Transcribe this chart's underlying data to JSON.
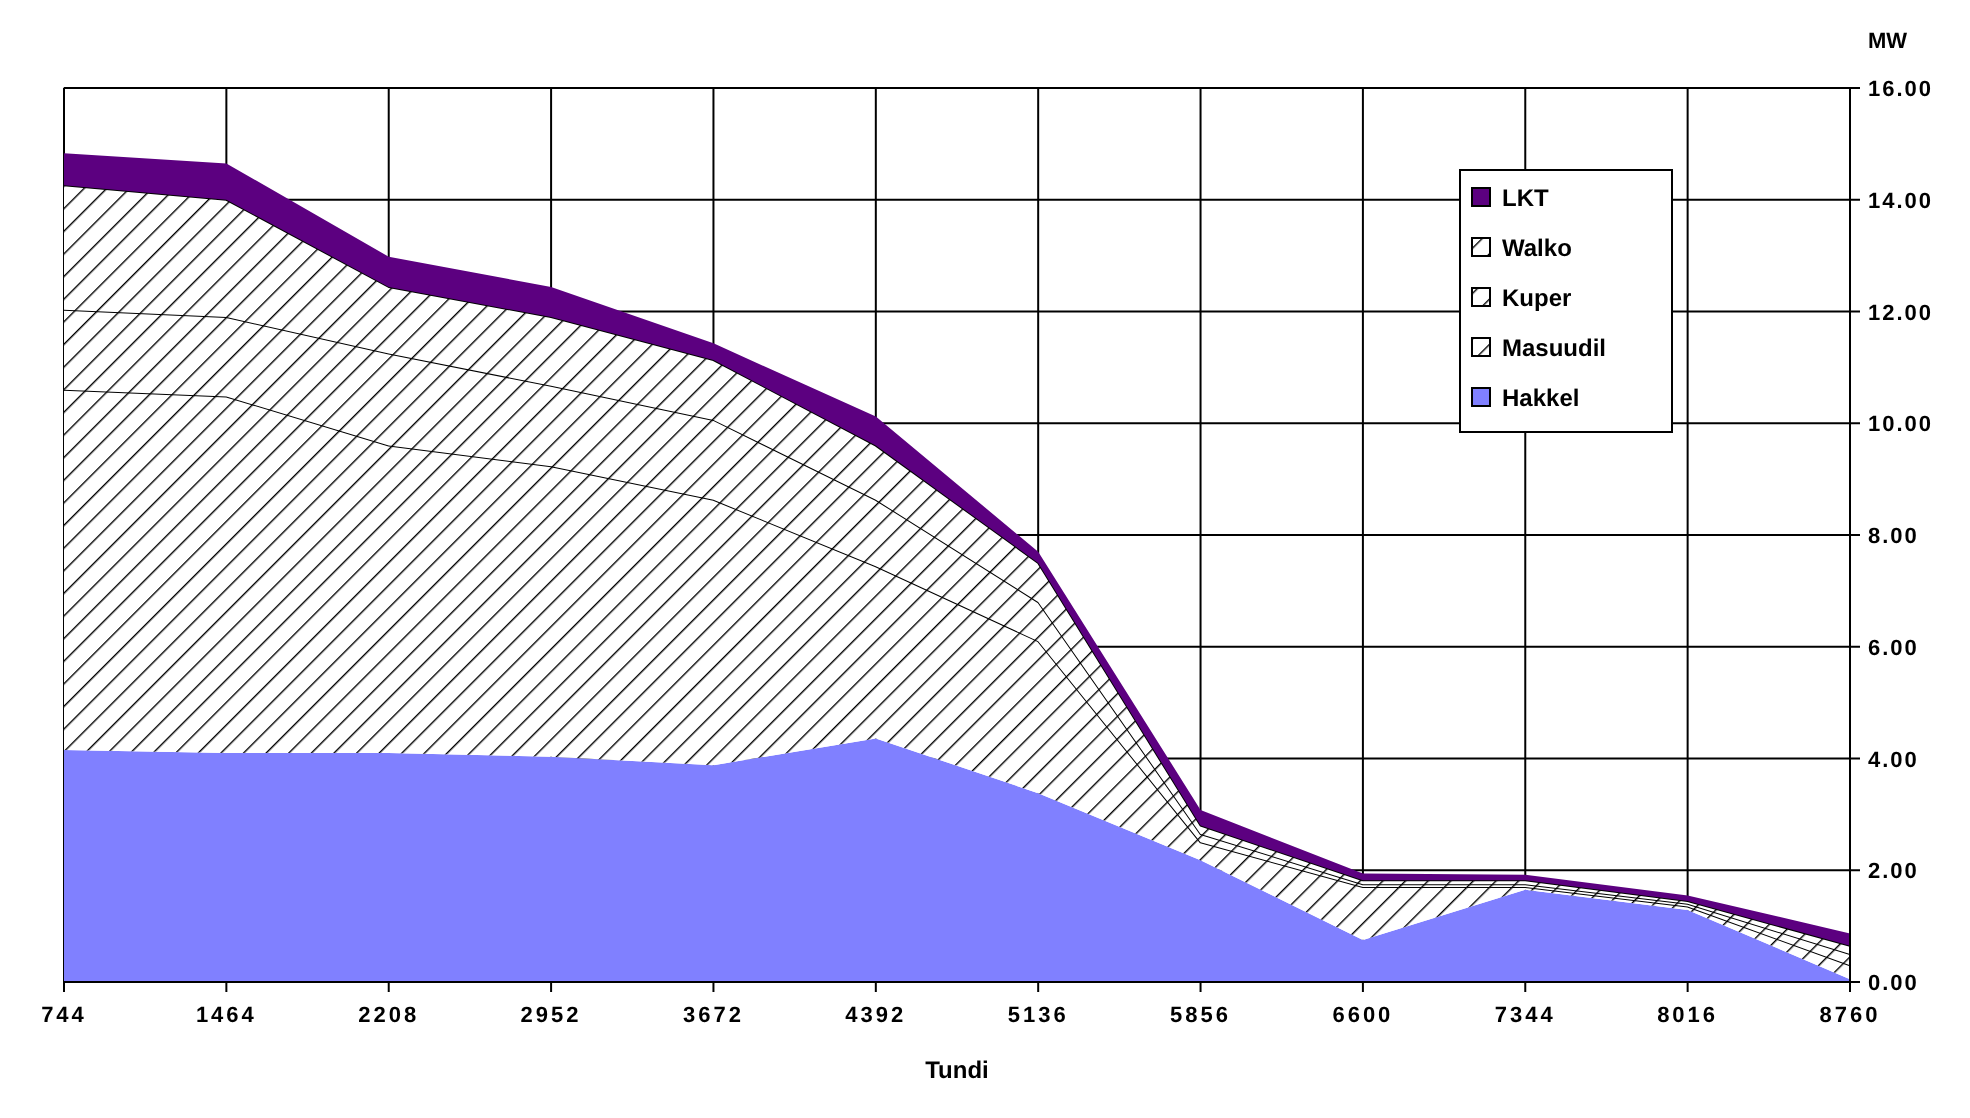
{
  "chart_data": {
    "type": "area",
    "stacked": true,
    "xlabel": "Tundi",
    "ylabel": "MW",
    "categories": [
      "744",
      "1464",
      "2208",
      "2952",
      "3672",
      "4392",
      "5136",
      "5856",
      "6600",
      "7344",
      "8016",
      "8760"
    ],
    "series": [
      {
        "name": "Hakkel",
        "color": "#8080ff",
        "values": [
          4.15,
          4.1,
          4.1,
          4.03,
          3.88,
          4.36,
          3.38,
          2.18,
          0.75,
          1.65,
          1.29,
          0.05
        ]
      },
      {
        "name": "Masuudil",
        "color": "#ffffff",
        "values": [
          6.45,
          6.38,
          5.5,
          5.2,
          4.75,
          3.08,
          2.72,
          0.32,
          0.95,
          0.05,
          0.06,
          0.25
        ]
      },
      {
        "name": "Kuper",
        "color": "#ffffff",
        "values": [
          1.43,
          1.42,
          1.65,
          1.44,
          1.43,
          1.19,
          0.7,
          0.15,
          0.05,
          0.05,
          0.05,
          0.2
        ]
      },
      {
        "name": "Walko",
        "color": "#ffffff",
        "values": [
          2.23,
          2.1,
          1.19,
          1.23,
          1.07,
          0.97,
          0.7,
          0.15,
          0.07,
          0.07,
          0.05,
          0.15
        ]
      },
      {
        "name": "LKT",
        "color": "#5c0080",
        "values": [
          0.57,
          0.65,
          0.54,
          0.54,
          0.3,
          0.52,
          0.2,
          0.28,
          0.12,
          0.1,
          0.1,
          0.22
        ]
      }
    ],
    "ylim": [
      0,
      16
    ],
    "yticks": [
      {
        "value": 0,
        "label": "0.00"
      },
      {
        "value": 2,
        "label": "2.00"
      },
      {
        "value": 4,
        "label": "4.00"
      },
      {
        "value": 6,
        "label": "6.00"
      },
      {
        "value": 8,
        "label": "8.00"
      },
      {
        "value": 10,
        "label": "10.00"
      },
      {
        "value": 12,
        "label": "12.00"
      },
      {
        "value": 14,
        "label": "14.00"
      },
      {
        "value": 16,
        "label": "16.00"
      }
    ],
    "grid": true,
    "legend": "top right"
  }
}
